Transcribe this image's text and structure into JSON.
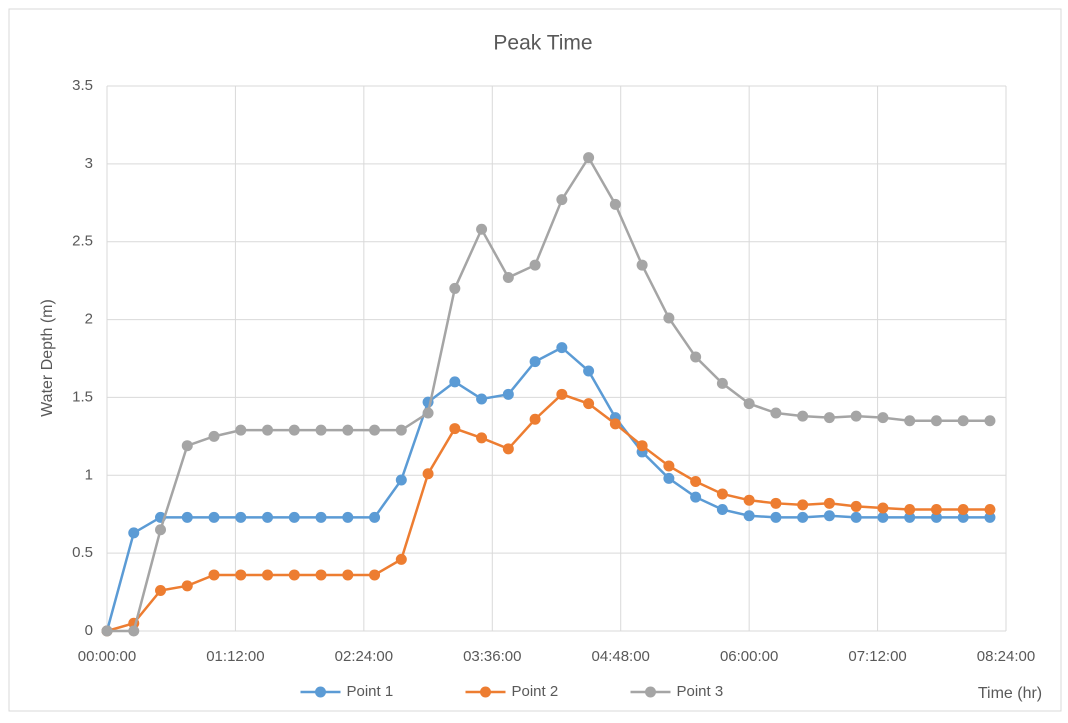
{
  "chart_data": {
    "type": "line",
    "title": "Peak Time",
    "x_label": "Time (hr)",
    "y_label": "Water Depth (m)",
    "x": [
      0,
      15,
      30,
      45,
      60,
      75,
      90,
      105,
      120,
      135,
      150,
      165,
      180,
      195,
      210,
      225,
      240,
      255,
      270,
      285,
      300,
      315,
      330,
      345,
      360,
      375,
      390,
      405,
      420,
      435,
      450,
      465,
      480,
      495
    ],
    "series": [
      {
        "name": "Point 1",
        "color": "#5b9bd5",
        "values": [
          0,
          0.63,
          0.73,
          0.73,
          0.73,
          0.73,
          0.73,
          0.73,
          0.73,
          0.73,
          0.73,
          0.97,
          1.47,
          1.6,
          1.49,
          1.52,
          1.73,
          1.82,
          1.67,
          1.37,
          1.15,
          0.98,
          0.86,
          0.78,
          0.74,
          0.73,
          0.73,
          0.74,
          0.73,
          0.73,
          0.73,
          0.73,
          0.73,
          0.73
        ]
      },
      {
        "name": "Point 2",
        "color": "#ed7d31",
        "values": [
          0,
          0.05,
          0.26,
          0.29,
          0.36,
          0.36,
          0.36,
          0.36,
          0.36,
          0.36,
          0.36,
          0.46,
          1.01,
          1.3,
          1.24,
          1.17,
          1.36,
          1.52,
          1.46,
          1.33,
          1.19,
          1.06,
          0.96,
          0.88,
          0.84,
          0.82,
          0.81,
          0.82,
          0.8,
          0.79,
          0.78,
          0.78,
          0.78,
          0.78
        ]
      },
      {
        "name": "Point 3",
        "color": "#a5a5a5",
        "values": [
          0,
          0,
          0.65,
          1.19,
          1.25,
          1.29,
          1.29,
          1.29,
          1.29,
          1.29,
          1.29,
          1.29,
          1.4,
          2.2,
          2.58,
          2.27,
          2.35,
          2.77,
          3.04,
          2.74,
          2.35,
          2.01,
          1.76,
          1.59,
          1.46,
          1.4,
          1.38,
          1.37,
          1.38,
          1.37,
          1.35,
          1.35,
          1.35,
          1.35
        ]
      }
    ],
    "xlim": [
      0,
      504
    ],
    "xticks": [
      {
        "value": 0,
        "label": "00:00:00"
      },
      {
        "value": 72,
        "label": "01:12:00"
      },
      {
        "value": 144,
        "label": "02:24:00"
      },
      {
        "value": 216,
        "label": "03:36:00"
      },
      {
        "value": 288,
        "label": "04:48:00"
      },
      {
        "value": 360,
        "label": "06:00:00"
      },
      {
        "value": 432,
        "label": "07:12:00"
      },
      {
        "value": 504,
        "label": "08:24:00"
      }
    ],
    "ylim": [
      0,
      3.5
    ],
    "yticks": [
      0,
      0.5,
      1,
      1.5,
      2,
      2.5,
      3,
      3.5
    ],
    "grid": true,
    "legend": "bottom"
  }
}
